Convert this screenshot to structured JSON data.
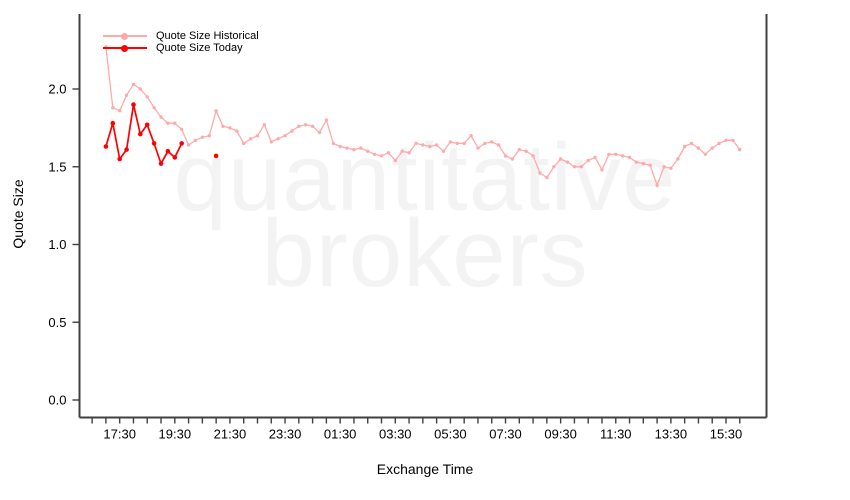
{
  "watermark": {
    "line1": "quantitative",
    "line2": "brokers"
  },
  "legend": [
    {
      "label": "Quote Size Historical",
      "color": "#ffaaaa"
    },
    {
      "label": "Quote Size Today",
      "color": "#ff0000"
    }
  ],
  "axes": {
    "x_title": "Exchange Time",
    "y_title": "Quote Size",
    "y_tick_labels": [
      "0.0",
      "0.5",
      "1.0",
      "1.5",
      "2.0"
    ],
    "x_tick_labels": [
      "17:30",
      "19:30",
      "21:30",
      "23:30",
      "01:30",
      "03:30",
      "05:30",
      "07:30",
      "09:30",
      "11:30",
      "13:30",
      "15:30"
    ]
  },
  "chart_data": {
    "type": "line",
    "title": "",
    "xlabel": "Exchange Time",
    "ylabel": "Quote Size",
    "ylim": [
      0.0,
      2.3
    ],
    "grid": false,
    "legend_position": "top-left",
    "x_minor_tick_interval_minutes": 30,
    "y_tick_values": [
      0.0,
      0.5,
      1.0,
      1.5,
      2.0
    ],
    "times": [
      "17:00",
      "17:15",
      "17:30",
      "17:45",
      "18:00",
      "18:15",
      "18:30",
      "18:45",
      "19:00",
      "19:15",
      "19:30",
      "19:45",
      "20:00",
      "20:15",
      "20:30",
      "20:45",
      "21:00",
      "21:15",
      "21:30",
      "21:45",
      "22:00",
      "22:15",
      "22:30",
      "22:45",
      "23:00",
      "23:15",
      "23:30",
      "23:45",
      "00:00",
      "00:15",
      "00:30",
      "00:45",
      "01:00",
      "01:15",
      "01:30",
      "01:45",
      "02:00",
      "02:15",
      "02:30",
      "02:45",
      "03:00",
      "03:15",
      "03:30",
      "03:45",
      "04:00",
      "04:15",
      "04:30",
      "04:45",
      "05:00",
      "05:15",
      "05:30",
      "05:45",
      "06:00",
      "06:15",
      "06:30",
      "06:45",
      "07:00",
      "07:15",
      "07:30",
      "07:45",
      "08:00",
      "08:15",
      "08:30",
      "08:45",
      "09:00",
      "09:15",
      "09:30",
      "09:45",
      "10:00",
      "10:15",
      "10:30",
      "10:45",
      "11:00",
      "11:15",
      "11:30",
      "11:45",
      "12:00",
      "12:15",
      "12:30",
      "12:45",
      "13:00",
      "13:15",
      "13:30",
      "13:45",
      "14:00",
      "14:15",
      "14:30",
      "14:45",
      "15:00",
      "15:15",
      "15:30",
      "15:45",
      "16:00"
    ],
    "series": [
      {
        "name": "Quote Size Historical",
        "color": "#ffaaaa",
        "marker": "circle",
        "values": [
          2.27,
          1.88,
          1.86,
          1.96,
          2.03,
          2.0,
          1.95,
          1.88,
          1.82,
          1.78,
          1.78,
          1.74,
          1.64,
          1.67,
          1.69,
          1.7,
          1.86,
          1.76,
          1.75,
          1.73,
          1.65,
          1.68,
          1.7,
          1.77,
          1.66,
          1.68,
          1.7,
          1.73,
          1.76,
          1.77,
          1.76,
          1.72,
          1.8,
          1.65,
          1.63,
          1.62,
          1.61,
          1.62,
          1.6,
          1.58,
          1.57,
          1.59,
          1.54,
          1.6,
          1.59,
          1.65,
          1.64,
          1.63,
          1.64,
          1.6,
          1.66,
          1.65,
          1.65,
          1.7,
          1.62,
          1.65,
          1.66,
          1.64,
          1.57,
          1.55,
          1.61,
          1.6,
          1.57,
          1.46,
          1.43,
          1.5,
          1.55,
          1.53,
          1.5,
          1.5,
          1.54,
          1.56,
          1.48,
          1.58,
          1.58,
          1.57,
          1.56,
          1.53,
          1.52,
          1.51,
          1.38,
          1.5,
          1.49,
          1.55,
          1.63,
          1.65,
          1.62,
          1.58,
          1.62,
          1.65,
          1.67,
          1.67,
          1.61
        ]
      },
      {
        "name": "Quote Size Today",
        "color": "#ff0000",
        "marker": "circle",
        "values": [
          1.63,
          1.78,
          1.55,
          1.61,
          1.9,
          1.71,
          1.77,
          1.65,
          1.52,
          1.6,
          1.56,
          1.65,
          null,
          null,
          null,
          null,
          1.57,
          null,
          null,
          null,
          null,
          null,
          null,
          null,
          null,
          null,
          null,
          null,
          null,
          null,
          null,
          null,
          null,
          null,
          null,
          null,
          null,
          null,
          null,
          null,
          null,
          null,
          null,
          null,
          null,
          null,
          null,
          null,
          null,
          null,
          null,
          null,
          null,
          null,
          null,
          null,
          null,
          null,
          null,
          null,
          null,
          null,
          null,
          null,
          null,
          null,
          null,
          null,
          null,
          null,
          null,
          null,
          null,
          null,
          null,
          null,
          null,
          null,
          null,
          null,
          null,
          null,
          null,
          null,
          null,
          null,
          null,
          null,
          null,
          null,
          null,
          null,
          null
        ]
      }
    ]
  }
}
